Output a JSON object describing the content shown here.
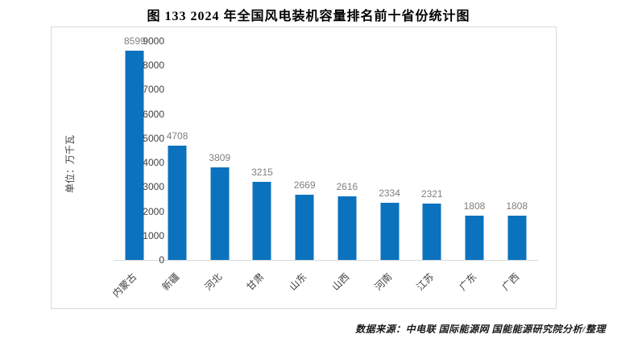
{
  "title": "图 133 2024 年全国风电装机容量排名前十省份统计图",
  "source": "数据来源：中电联 国际能源网 国能能源研究院分析/整理",
  "colors": {
    "bar": "#0b72be",
    "value_label": "#7f7f7f",
    "axis_text": "#404040",
    "frame_border": "#d9d9d9"
  },
  "chart_data": {
    "type": "bar",
    "title": "图 133 2024 年全国风电装机容量排名前十省份统计图",
    "categories": [
      "内蒙古",
      "新疆",
      "河北",
      "甘肃",
      "山东",
      "山西",
      "河南",
      "江苏",
      "广东",
      "广西"
    ],
    "values": [
      8599,
      4708,
      3809,
      3215,
      2669,
      2616,
      2334,
      2321,
      1808,
      1808
    ],
    "xlabel": "",
    "ylabel": "单位：万千瓦",
    "ylim": [
      0,
      9000
    ],
    "yticks": [
      0,
      1000,
      2000,
      3000,
      4000,
      5000,
      6000,
      7000,
      8000,
      9000
    ],
    "grid": false,
    "legend_position": "none",
    "value_labels_shown": true
  }
}
